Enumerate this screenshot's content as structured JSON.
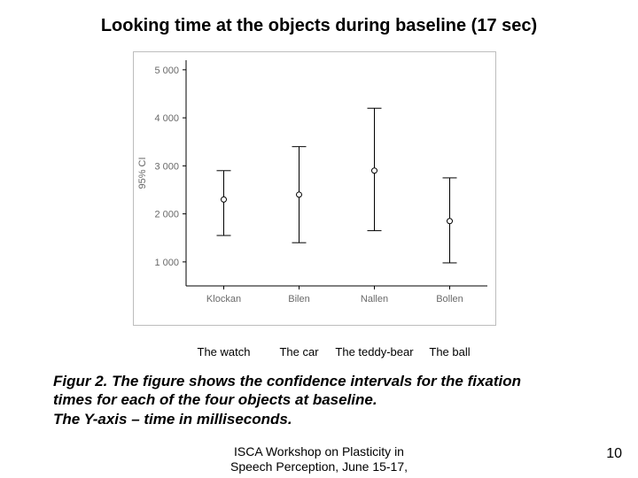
{
  "title": "Looking time at the objects during baseline (17 sec)",
  "chart": {
    "type": "error-bar",
    "background_color": "#ffffff",
    "plot_border_color": "#000000",
    "tick_color": "#000000",
    "label_color": "#6a6a6a",
    "marker_color": "#000000",
    "whisker_color": "#000000",
    "y_axis_label": "95% CI",
    "y_axis_label_fontsize": 11,
    "tick_fontsize": 11,
    "ylim": [
      500,
      5200
    ],
    "yticks": [
      1000,
      2000,
      3000,
      4000,
      5000
    ],
    "ytick_labels": [
      "1 000",
      "2 000",
      "3 000",
      "4 000",
      "5 000"
    ],
    "marker_radius": 3,
    "whisker_cap_halfwidth": 8,
    "line_width": 1,
    "categories": [
      "Klockan",
      "Bilen",
      "Nallen",
      "Bollen"
    ],
    "points": [
      {
        "mean": 2300,
        "lo": 1550,
        "hi": 2900
      },
      {
        "mean": 2400,
        "lo": 1400,
        "hi": 3400
      },
      {
        "mean": 2900,
        "lo": 1650,
        "hi": 4200
      },
      {
        "mean": 1850,
        "lo": 980,
        "hi": 2750
      }
    ],
    "english_labels": [
      "The watch",
      "The car",
      "The teddy-bear",
      "The ball"
    ]
  },
  "caption_line1": "Figur 2. The figure shows the confidence intervals for the fixation",
  "caption_line2": "times for each of the four objects at baseline.",
  "caption_line3": "The Y-axis – time in milliseconds.",
  "footer_line1": "ISCA Workshop on Plasticity in",
  "footer_line2": "Speech Perception, June 15-17,",
  "page_number": "10"
}
